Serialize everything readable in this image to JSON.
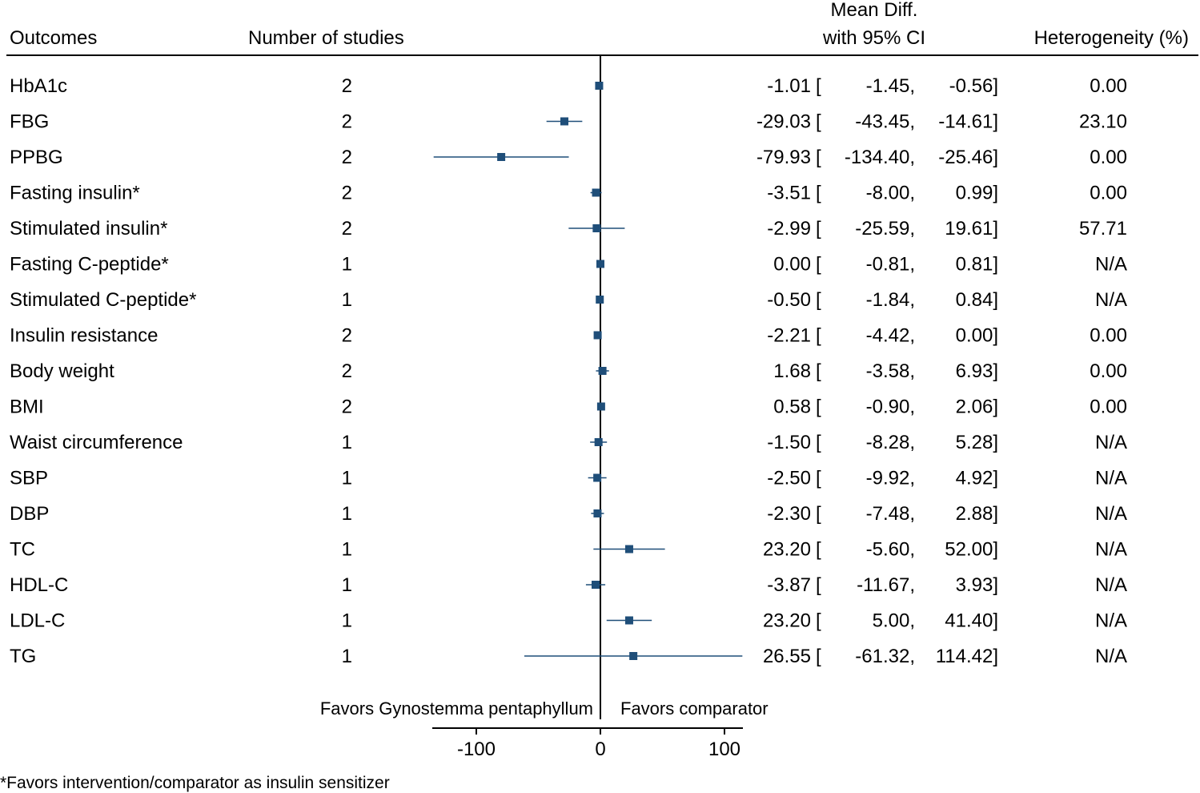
{
  "chart_data": {
    "type": "forest",
    "headers": {
      "outcomes": "Outcomes",
      "studies": "Number of studies",
      "effect_line1": "Mean Diff.",
      "effect_line2": "with 95% CI",
      "heterogeneity": "Heterogeneity (%)"
    },
    "rows": [
      {
        "label": "HbA1c",
        "n": "2",
        "est": "-1.01",
        "lo": "-1.45,",
        "hi": "-0.56]",
        "het": "0.00",
        "x": -1.01,
        "ci": [
          -1.45,
          -0.56
        ]
      },
      {
        "label": "FBG",
        "n": "2",
        "est": "-29.03",
        "lo": "-43.45,",
        "hi": "-14.61]",
        "het": "23.10",
        "x": -29.03,
        "ci": [
          -43.45,
          -14.61
        ]
      },
      {
        "label": "PPBG",
        "n": "2",
        "est": "-79.93",
        "lo": "-134.40,",
        "hi": "-25.46]",
        "het": "0.00",
        "x": -79.93,
        "ci": [
          -134.4,
          -25.46
        ]
      },
      {
        "label": "Fasting insulin*",
        "n": "2",
        "est": "-3.51",
        "lo": "-8.00,",
        "hi": "0.99]",
        "het": "0.00",
        "x": -3.51,
        "ci": [
          -8.0,
          0.99
        ]
      },
      {
        "label": "Stimulated insulin*",
        "n": "2",
        "est": "-2.99",
        "lo": "-25.59,",
        "hi": "19.61]",
        "het": "57.71",
        "x": -2.99,
        "ci": [
          -25.59,
          19.61
        ]
      },
      {
        "label": "Fasting C-peptide*",
        "n": "1",
        "est": "0.00",
        "lo": "-0.81,",
        "hi": "0.81]",
        "het": "N/A",
        "x": 0.0,
        "ci": [
          -0.81,
          0.81
        ]
      },
      {
        "label": "Stimulated C-peptide*",
        "n": "1",
        "est": "-0.50",
        "lo": "-1.84,",
        "hi": "0.84]",
        "het": "N/A",
        "x": -0.5,
        "ci": [
          -1.84,
          0.84
        ]
      },
      {
        "label": "Insulin resistance",
        "n": "2",
        "est": "-2.21",
        "lo": "-4.42,",
        "hi": "0.00]",
        "het": "0.00",
        "x": -2.21,
        "ci": [
          -4.42,
          0.0
        ]
      },
      {
        "label": "Body weight",
        "n": "2",
        "est": "1.68",
        "lo": "-3.58,",
        "hi": "6.93]",
        "het": "0.00",
        "x": 1.68,
        "ci": [
          -3.58,
          6.93
        ]
      },
      {
        "label": "BMI",
        "n": "2",
        "est": "0.58",
        "lo": "-0.90,",
        "hi": "2.06]",
        "het": "0.00",
        "x": 0.58,
        "ci": [
          -0.9,
          2.06
        ]
      },
      {
        "label": "Waist circumference",
        "n": "1",
        "est": "-1.50",
        "lo": "-8.28,",
        "hi": "5.28]",
        "het": "N/A",
        "x": -1.5,
        "ci": [
          -8.28,
          5.28
        ]
      },
      {
        "label": "SBP",
        "n": "1",
        "est": "-2.50",
        "lo": "-9.92,",
        "hi": "4.92]",
        "het": "N/A",
        "x": -2.5,
        "ci": [
          -9.92,
          4.92
        ]
      },
      {
        "label": "DBP",
        "n": "1",
        "est": "-2.30",
        "lo": "-7.48,",
        "hi": "2.88]",
        "het": "N/A",
        "x": -2.3,
        "ci": [
          -7.48,
          2.88
        ]
      },
      {
        "label": "TC",
        "n": "1",
        "est": "23.20",
        "lo": "-5.60,",
        "hi": "52.00]",
        "het": "N/A",
        "x": 23.2,
        "ci": [
          -5.6,
          52.0
        ]
      },
      {
        "label": "HDL-C",
        "n": "1",
        "est": "-3.87",
        "lo": "-11.67,",
        "hi": "3.93]",
        "het": "N/A",
        "x": -3.87,
        "ci": [
          -11.67,
          3.93
        ]
      },
      {
        "label": "LDL-C",
        "n": "1",
        "est": "23.20",
        "lo": "5.00,",
        "hi": "41.40]",
        "het": "N/A",
        "x": 23.2,
        "ci": [
          5.0,
          41.4
        ]
      },
      {
        "label": "TG",
        "n": "1",
        "est": "26.55",
        "lo": "-61.32,",
        "hi": "114.42]",
        "het": "N/A",
        "x": 26.55,
        "ci": [
          -61.32,
          114.42
        ]
      }
    ],
    "bracket_open": "[",
    "xlim": [
      -134.4,
      114.42
    ],
    "xticks": [
      -100,
      0,
      100
    ],
    "xtick_labels": [
      "-100",
      "0",
      "100"
    ],
    "favors_left": "Favors Gynostemma pentaphyllum",
    "favors_right": "Favors comparator",
    "footnote": "*Favors intervention/comparator as insulin sensitizer",
    "marker_color": "#1f4e79",
    "line_color": "#1f4e79"
  }
}
